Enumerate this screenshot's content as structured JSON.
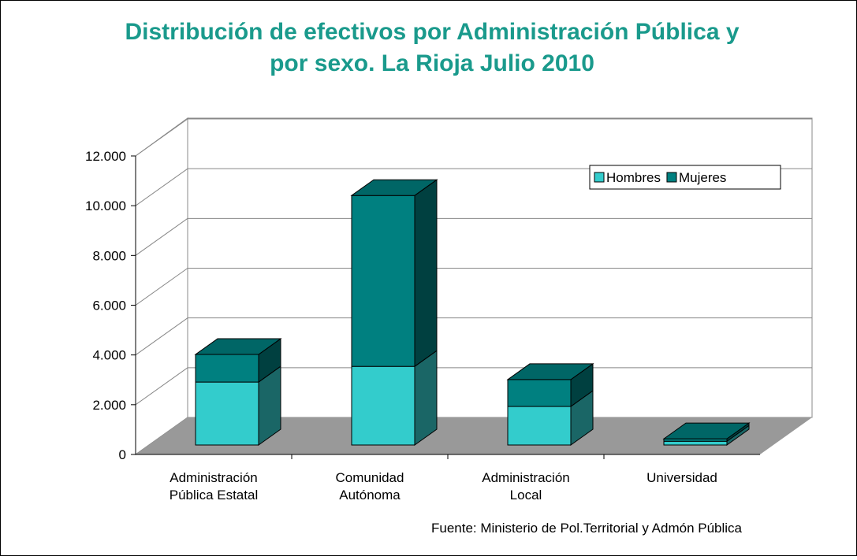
{
  "chart_data": {
    "type": "bar3d_stacked",
    "title": "Distribución de efectivos por Administración Pública y por sexo. La Rioja Julio 2010",
    "categories": [
      "Administración Pública Estatal",
      "Comunidad Autónoma",
      "Administración Local",
      "Universidad"
    ],
    "series": [
      {
        "name": "Hombres",
        "color": "#33cccc",
        "values": [
          2530,
          3160,
          1550,
          150
        ]
      },
      {
        "name": "Mujeres",
        "color": "#008080",
        "values": [
          1110,
          6870,
          1080,
          100
        ]
      }
    ],
    "ylim": [
      0,
      12000
    ],
    "yticks": [
      0,
      {
        "value": 2000,
        "label": "2.000"
      },
      {
        "value": 4000,
        "label": "4.000"
      },
      {
        "value": 6000,
        "label": "6.000"
      },
      {
        "value": 8000,
        "label": "8.000"
      },
      {
        "value": 10000,
        "label": "10.000"
      },
      {
        "value": 12000,
        "label": "12.000"
      }
    ],
    "grid": true,
    "legend": "top-right",
    "source": "Fuente: Ministerio de Pol.Territorial y Admón Pública"
  }
}
